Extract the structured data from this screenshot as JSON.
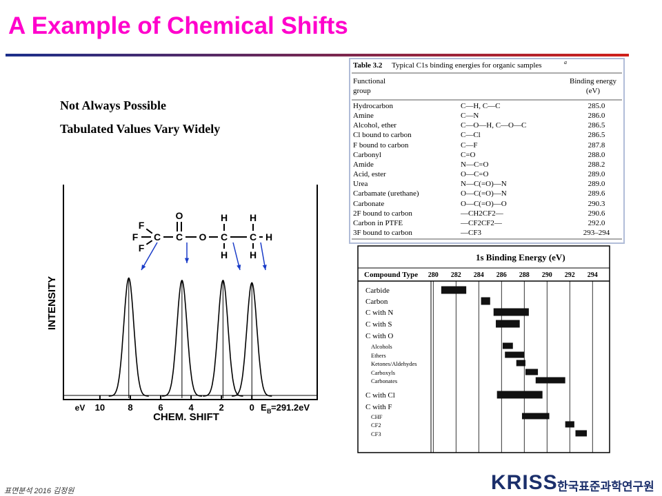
{
  "title": "A Example of Chemical Shifts",
  "bullets": [
    "Not Always Possible",
    "Tabulated Values Vary Widely"
  ],
  "table": {
    "number": "Table 3.2",
    "caption": "Typical C1s binding energies for organic samples",
    "footnote_mark": "a",
    "headers": [
      "Functional group",
      "Binding energy (eV)"
    ],
    "rows": [
      [
        "Hydrocarbon",
        "C—H, C—C",
        "285.0"
      ],
      [
        "Amine",
        "C—N",
        "286.0"
      ],
      [
        "Alcohol, ether",
        "C—O—H, C—O—C",
        "286.5"
      ],
      [
        "Cl bound to carbon",
        "C—Cl",
        "286.5"
      ],
      [
        "F bound to carbon",
        "C—F",
        "287.8"
      ],
      [
        "Carbonyl",
        "C=O",
        "288.0"
      ],
      [
        "Amide",
        "N—C=O",
        "288.2"
      ],
      [
        "Acid, ester",
        "O—C=O",
        "289.0"
      ],
      [
        "Urea",
        "N—C(=O)—N",
        "289.0"
      ],
      [
        "Carbamate (urethane)",
        "O—C(=O)—N",
        "289.6"
      ],
      [
        "Carbonate",
        "O—C(=O)—O",
        "290.3"
      ],
      [
        "2F bound to carbon",
        "—CH2CF2—",
        "290.6"
      ],
      [
        "Carbon in PTFE",
        "—CF2CF2—",
        "292.0"
      ],
      [
        "3F bound to carbon",
        "—CF3",
        "293–294"
      ]
    ]
  },
  "spectrum": {
    "type": "line",
    "x_label": "CHEM. SHIFT",
    "y_label": "INTENSITY",
    "unit_label": "eV",
    "reference_symbol": "E",
    "reference_subscript": "B",
    "reference_value": "=291.2eV",
    "xlim": [
      12.4,
      -4.3
    ],
    "xticks": [
      10,
      8,
      6,
      4,
      2,
      0
    ],
    "ylim": [
      0,
      1.05
    ],
    "peak_positions": [
      8.1,
      4.6,
      1.9,
      0
    ],
    "peak_heights": [
      1,
      0.98,
      0.98,
      0.96
    ],
    "atoms": [
      "F",
      "F",
      "F",
      "C",
      "O",
      "C",
      "O",
      "H",
      "C",
      "H",
      "H",
      "C",
      "H",
      "H"
    ]
  },
  "binding_chart": {
    "type": "bar",
    "title": "1s Binding Energy (eV)",
    "header": "Compound Type",
    "xlim": [
      279.8,
      295.5
    ],
    "xticks": [
      280,
      282,
      284,
      286,
      288,
      290,
      292,
      294
    ],
    "categories": [
      "Carbide",
      "Carbon",
      "C with N",
      "C with S",
      "C with O",
      "Alcohols",
      "Ethers",
      "Ketones/Aldehydes",
      "Carboxyls",
      "Carbonates",
      "C with Cl",
      "C with F",
      "CHF",
      "CF2",
      "CF3"
    ],
    "start": [
      280.7,
      284.2,
      285.3,
      285.5,
      null,
      286.1,
      286.3,
      287.3,
      288.1,
      289.0,
      285.6,
      null,
      287.8,
      291.6,
      292.5
    ],
    "end": [
      282.9,
      285.0,
      288.4,
      287.6,
      null,
      287.0,
      288.0,
      288.1,
      289.2,
      291.6,
      289.6,
      null,
      290.2,
      292.4,
      293.5
    ],
    "color": "#111111"
  },
  "footer": {
    "left": "표면분석 2016 김정원",
    "logo": "KRISS",
    "institute": "한국표준과학연구원"
  }
}
